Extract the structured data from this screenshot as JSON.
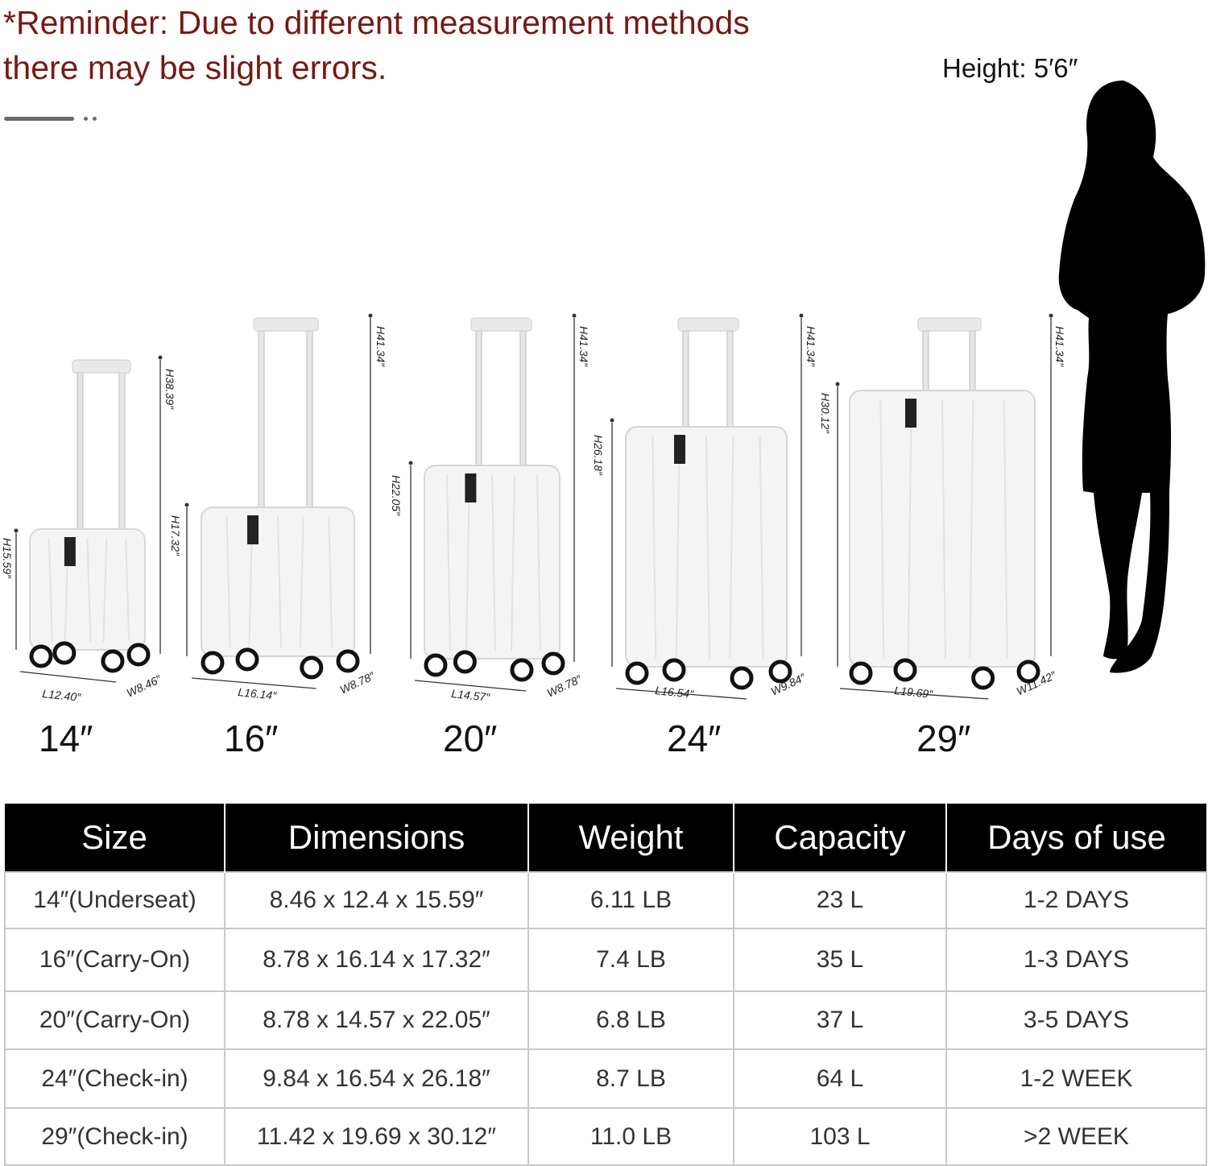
{
  "reminder": {
    "line1": "*Reminder: Due to different measurement methods",
    "line2": "there may be slight errors."
  },
  "person": {
    "height_label": "Height: 5′6″"
  },
  "colors": {
    "reminder_text": "#761a12",
    "header_bg": "#000000",
    "header_text": "#ffffff",
    "suitcase": "#f4f4f4"
  },
  "suitcases": [
    {
      "size": "14″",
      "total_height": "H38.39″",
      "body_height": "H15.59″",
      "length": "L12.40″",
      "width": "W8.46″"
    },
    {
      "size": "16″",
      "total_height": "H41.34″",
      "body_height": "H17.32″",
      "length": "L16.14″",
      "width": "W8.78″"
    },
    {
      "size": "20″",
      "total_height": "H41.34″",
      "body_height": "H22.05″",
      "length": "L14.57″",
      "width": "W8.78″"
    },
    {
      "size": "24″",
      "total_height": "H41.34″",
      "body_height": "H26.18″",
      "length": "L16.54″",
      "width": "W9.84″"
    },
    {
      "size": "29″",
      "total_height": "H41.34″",
      "body_height": "H30.12″",
      "length": "L19.69″",
      "width": "W11.42″"
    }
  ],
  "table": {
    "headers": [
      "Size",
      "Dimensions",
      "Weight",
      "Capacity",
      "Days of use"
    ],
    "rows": [
      [
        "14″(Underseat)",
        "8.46 x 12.4 x 15.59″",
        "6.11 LB",
        "23 L",
        "1-2 DAYS"
      ],
      [
        "16″(Carry-On)",
        "8.78 x 16.14 x 17.32″",
        "7.4 LB",
        "35 L",
        "1-3 DAYS"
      ],
      [
        "20″(Carry-On)",
        "8.78 x 14.57 x 22.05″",
        "6.8 LB",
        "37 L",
        "3-5 DAYS"
      ],
      [
        "24″(Check-in)",
        "9.84 x 16.54 x 26.18″",
        "8.7 LB",
        "64 L",
        "1-2 WEEK"
      ],
      [
        "29″(Check-in)",
        "11.42 x 19.69 x 30.12″",
        "11.0 LB",
        "103 L",
        ">2 WEEK"
      ]
    ]
  }
}
